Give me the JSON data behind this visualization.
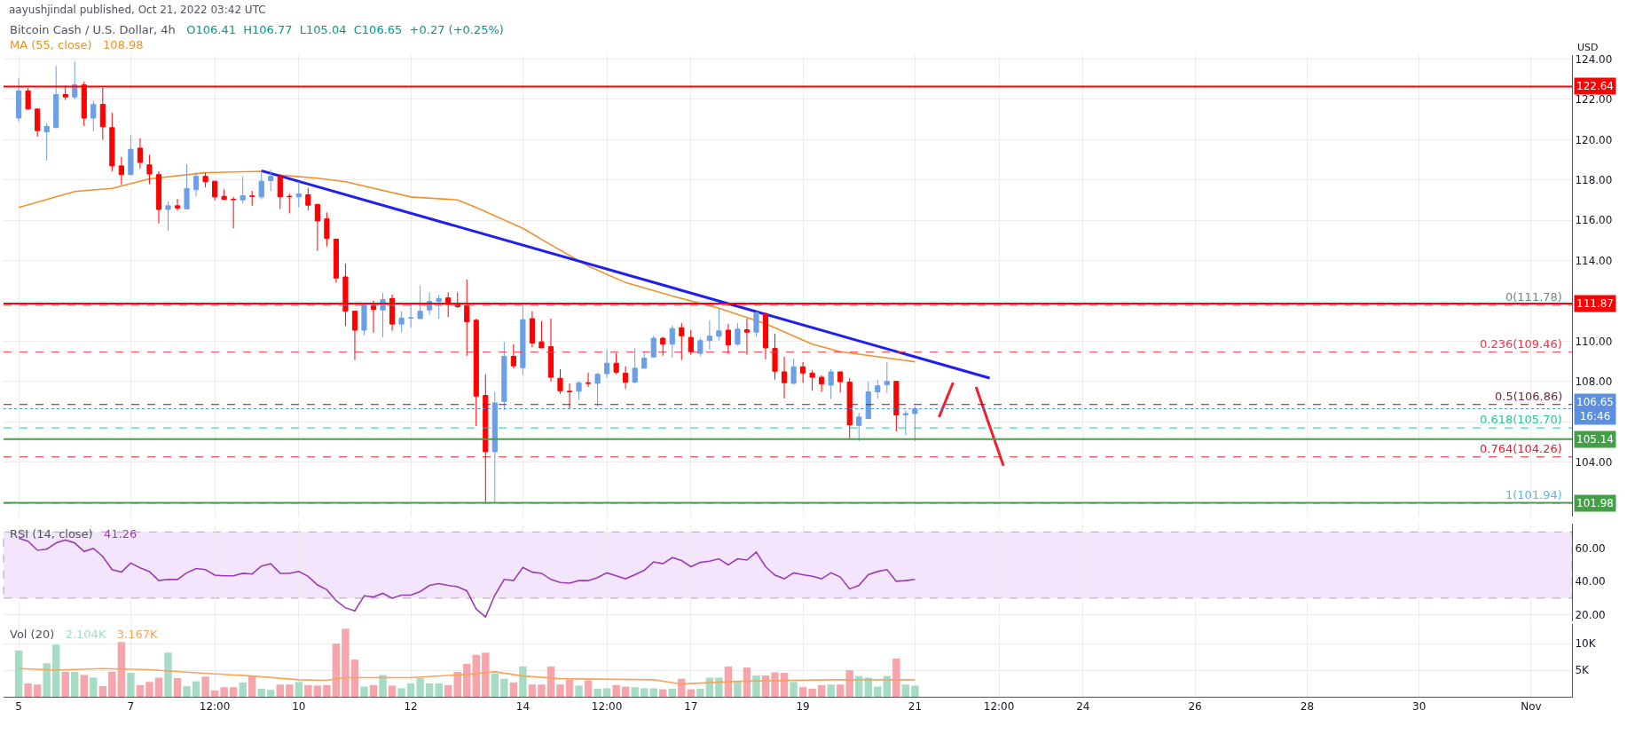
{
  "chart_data": [
    {
      "type": "candlestick",
      "title": "Bitcoin Cash / U.S. Dollar, 4h",
      "subtitle": "O106.41  H106.77  L105.04  C106.65  +0.27 (+0.25%)",
      "ylabel": "USD",
      "annotations": [
        "aayushjindal published, Oct 21, 2022 03:42 UTC",
        "108.98"
      ],
      "x": [
        "2022-10-05T00:00",
        "2022-10-05T04:00",
        "2022-10-05T08:00",
        "2022-10-05T12:00",
        "2022-10-05T16:00",
        "2022-10-05T20:00",
        "2022-10-06T00:00",
        "2022-10-06T04:00",
        "2022-10-06T08:00",
        "2022-10-06T12:00",
        "2022-10-06T16:00",
        "2022-10-06T20:00",
        "2022-10-07T00:00",
        "2022-10-07T04:00",
        "2022-10-07T08:00",
        "2022-10-07T12:00",
        "2022-10-07T16:00",
        "2022-10-07T20:00",
        "2022-10-08T00:00",
        "2022-10-08T04:00",
        "2022-10-08T08:00",
        "2022-10-08T12:00",
        "2022-10-08T16:00",
        "2022-10-08T20:00",
        "2022-10-09T00:00",
        "2022-10-09T04:00",
        "2022-10-09T08:00",
        "2022-10-09T12:00",
        "2022-10-09T16:00",
        "2022-10-09T20:00",
        "2022-10-10T00:00",
        "2022-10-10T04:00",
        "2022-10-10T08:00",
        "2022-10-10T12:00",
        "2022-10-10T16:00",
        "2022-10-10T20:00",
        "2022-10-11T00:00",
        "2022-10-11T04:00",
        "2022-10-11T08:00",
        "2022-10-11T12:00",
        "2022-10-11T16:00",
        "2022-10-11T20:00",
        "2022-10-12T00:00",
        "2022-10-12T04:00",
        "2022-10-12T08:00",
        "2022-10-12T12:00",
        "2022-10-12T16:00",
        "2022-10-12T20:00",
        "2022-10-13T00:00",
        "2022-10-13T04:00",
        "2022-10-13T08:00",
        "2022-10-13T12:00",
        "2022-10-13T16:00",
        "2022-10-13T20:00",
        "2022-10-14T00:00",
        "2022-10-14T04:00",
        "2022-10-14T08:00",
        "2022-10-14T12:00",
        "2022-10-14T16:00",
        "2022-10-14T20:00",
        "2022-10-15T00:00",
        "2022-10-15T04:00",
        "2022-10-15T08:00",
        "2022-10-15T12:00",
        "2022-10-15T16:00",
        "2022-10-15T20:00",
        "2022-10-16T00:00",
        "2022-10-16T04:00",
        "2022-10-16T08:00",
        "2022-10-16T12:00",
        "2022-10-16T16:00",
        "2022-10-16T20:00",
        "2022-10-17T00:00",
        "2022-10-17T04:00",
        "2022-10-17T08:00",
        "2022-10-17T12:00",
        "2022-10-17T16:00",
        "2022-10-17T20:00",
        "2022-10-18T00:00",
        "2022-10-18T04:00",
        "2022-10-18T08:00",
        "2022-10-18T12:00",
        "2022-10-18T16:00",
        "2022-10-18T20:00",
        "2022-10-19T00:00",
        "2022-10-19T04:00",
        "2022-10-19T08:00",
        "2022-10-19T12:00",
        "2022-10-19T16:00",
        "2022-10-19T20:00",
        "2022-10-20T00:00",
        "2022-10-20T04:00",
        "2022-10-20T08:00",
        "2022-10-20T12:00",
        "2022-10-20T16:00",
        "2022-10-20T20:00",
        "2022-10-21T00:00"
      ],
      "ohlc": [
        [
          121.07,
          123.04,
          120.9,
          122.42
        ],
        [
          122.42,
          122.57,
          121.5,
          121.52
        ],
        [
          121.52,
          121.55,
          120.15,
          120.45
        ],
        [
          120.39,
          120.82,
          118.96,
          120.66
        ],
        [
          120.6,
          123.66,
          120.6,
          122.24
        ],
        [
          122.24,
          122.69,
          121.97,
          122.12
        ],
        [
          122.12,
          123.88,
          121.99,
          122.72
        ],
        [
          122.72,
          122.87,
          120.67,
          121.07
        ],
        [
          121.07,
          121.94,
          120.42,
          121.75
        ],
        [
          121.75,
          122.57,
          120.0,
          120.64
        ],
        [
          120.6,
          121.34,
          118.43,
          118.7
        ],
        [
          118.7,
          119.15,
          117.76,
          118.27
        ],
        [
          118.27,
          120.22,
          118.21,
          119.52
        ],
        [
          119.58,
          120.07,
          118.57,
          118.87
        ],
        [
          118.75,
          119.25,
          117.79,
          118.3
        ],
        [
          118.27,
          118.43,
          115.85,
          116.54
        ],
        [
          116.54,
          116.94,
          115.48,
          116.72
        ],
        [
          116.72,
          117.06,
          116.49,
          116.61
        ],
        [
          116.57,
          118.78,
          116.54,
          117.58
        ],
        [
          117.52,
          118.39,
          117.19,
          118.18
        ],
        [
          118.18,
          118.36,
          117.64,
          117.91
        ],
        [
          117.94,
          117.94,
          116.99,
          117.16
        ],
        [
          117.19,
          117.54,
          117.01,
          117.04
        ],
        [
          117.04,
          117.16,
          115.6,
          117.03
        ],
        [
          117.01,
          118.18,
          116.84,
          117.22
        ],
        [
          117.2,
          117.46,
          116.72,
          117.19
        ],
        [
          117.16,
          118.43,
          117.04,
          117.94
        ],
        [
          117.97,
          118.51,
          117.46,
          118.18
        ],
        [
          118.18,
          118.28,
          116.57,
          117.16
        ],
        [
          117.19,
          117.31,
          116.34,
          117.17
        ],
        [
          117.16,
          117.91,
          116.64,
          117.31
        ],
        [
          117.27,
          117.61,
          116.49,
          116.75
        ],
        [
          116.79,
          116.79,
          114.48,
          115.97
        ],
        [
          116.07,
          116.39,
          114.7,
          115.1
        ],
        [
          115.06,
          115.1,
          112.91,
          113.13
        ],
        [
          113.19,
          113.85,
          110.75,
          111.49
        ],
        [
          111.49,
          111.49,
          109.07,
          110.55
        ],
        [
          110.55,
          111.79,
          110.3,
          111.79
        ],
        [
          111.76,
          112.01,
          110.42,
          111.58
        ],
        [
          111.55,
          112.39,
          110.21,
          112.06
        ],
        [
          112.12,
          112.31,
          110.52,
          110.85
        ],
        [
          110.85,
          111.49,
          110.45,
          111.15
        ],
        [
          111.15,
          111.82,
          110.67,
          111.16
        ],
        [
          111.12,
          112.76,
          111.12,
          111.49
        ],
        [
          111.55,
          112.42,
          111.31,
          111.97
        ],
        [
          111.97,
          112.31,
          111.12,
          112.12
        ],
        [
          112.15,
          112.42,
          111.19,
          111.82
        ],
        [
          111.82,
          112.42,
          111.64,
          111.72
        ],
        [
          111.76,
          113.06,
          109.28,
          110.97
        ],
        [
          111.04,
          111.12,
          105.79,
          107.28
        ],
        [
          107.31,
          108.36,
          101.94,
          104.52
        ],
        [
          104.52,
          107.49,
          102.0,
          106.94
        ],
        [
          107.01,
          109.97,
          106.57,
          109.25
        ],
        [
          109.25,
          109.85,
          108.66,
          108.78
        ],
        [
          108.69,
          111.76,
          108.33,
          111.07
        ],
        [
          111.12,
          111.49,
          109.7,
          109.91
        ],
        [
          109.97,
          111.0,
          109.67,
          109.67
        ],
        [
          109.73,
          111.12,
          107.99,
          108.21
        ],
        [
          108.16,
          108.61,
          107.39,
          107.54
        ],
        [
          107.52,
          107.91,
          106.64,
          107.49
        ],
        [
          107.52,
          108.01,
          107.09,
          107.94
        ],
        [
          107.94,
          108.43,
          107.73,
          107.91
        ],
        [
          107.91,
          108.43,
          106.75,
          108.36
        ],
        [
          108.39,
          109.58,
          108.18,
          108.91
        ],
        [
          108.91,
          109.4,
          108.36,
          108.46
        ],
        [
          108.42,
          108.76,
          107.64,
          107.97
        ],
        [
          107.97,
          109.66,
          107.91,
          108.66
        ],
        [
          108.66,
          109.51,
          108.66,
          109.16
        ],
        [
          109.22,
          110.27,
          109.18,
          110.15
        ],
        [
          110.15,
          110.22,
          109.28,
          109.85
        ],
        [
          109.85,
          110.78,
          109.18,
          110.63
        ],
        [
          110.67,
          110.9,
          109.07,
          110.27
        ],
        [
          110.19,
          110.57,
          109.33,
          109.48
        ],
        [
          109.4,
          110.18,
          109.25,
          110.03
        ],
        [
          110.03,
          111.04,
          109.58,
          110.25
        ],
        [
          110.25,
          111.61,
          110.03,
          110.51
        ],
        [
          110.55,
          110.87,
          109.37,
          109.82
        ],
        [
          109.85,
          110.9,
          109.78,
          110.6
        ],
        [
          110.57,
          111.12,
          109.33,
          110.45
        ],
        [
          110.45,
          111.46,
          110.22,
          111.42
        ],
        [
          111.37,
          111.42,
          109.1,
          109.67
        ],
        [
          109.64,
          110.37,
          108.09,
          108.51
        ],
        [
          108.48,
          109.22,
          107.16,
          107.94
        ],
        [
          107.91,
          109.13,
          107.87,
          108.73
        ],
        [
          108.73,
          108.96,
          107.94,
          108.42
        ],
        [
          108.42,
          108.57,
          107.54,
          108.21
        ],
        [
          108.21,
          108.3,
          107.49,
          107.88
        ],
        [
          107.82,
          108.61,
          107.13,
          108.48
        ],
        [
          108.48,
          108.48,
          107.46,
          107.99
        ],
        [
          107.97,
          108.18,
          105.19,
          105.85
        ],
        [
          105.82,
          106.45,
          105.04,
          106.24
        ],
        [
          106.16,
          107.99,
          106.15,
          107.49
        ],
        [
          107.49,
          108.09,
          107.16,
          107.79
        ],
        [
          107.84,
          108.96,
          107.43,
          108.01
        ],
        [
          108.01,
          108.01,
          105.52,
          106.34
        ],
        [
          106.34,
          106.57,
          105.34,
          106.41
        ],
        [
          106.41,
          106.77,
          105.04,
          106.65
        ]
      ],
      "colors": [
        "#6b9fe8",
        "#ff0000",
        "#ff0000",
        "#6b9fe8",
        "#6b9fe8",
        "#ff0000",
        "#6b9fe8",
        "#ff0000",
        "#6b9fe8",
        "#ff0000",
        "#ff0000",
        "#ff0000",
        "#6b9fe8",
        "#ff0000",
        "#ff0000",
        "#ff0000",
        "#6b9fe8",
        "#ff0000",
        "#6b9fe8",
        "#6b9fe8",
        "#ff0000",
        "#ff0000",
        "#ff0000",
        "#ff0000",
        "#6b9fe8",
        "#ff0000",
        "#6b9fe8",
        "#6b9fe8",
        "#ff0000",
        "#ff0000",
        "#6b9fe8",
        "#ff0000",
        "#ff0000",
        "#ff0000",
        "#ff0000",
        "#ff0000",
        "#ff0000",
        "#6b9fe8",
        "#ff0000",
        "#6b9fe8",
        "#ff0000",
        "#6b9fe8",
        "#6b9fe8",
        "#6b9fe8",
        "#6b9fe8",
        "#6b9fe8",
        "#ff0000",
        "#ff0000",
        "#ff0000",
        "#ff0000",
        "#ff0000",
        "#6b9fe8",
        "#6b9fe8",
        "#ff0000",
        "#6b9fe8",
        "#ff0000",
        "#ff0000",
        "#ff0000",
        "#ff0000",
        "#ff0000",
        "#6b9fe8",
        "#ff0000",
        "#6b9fe8",
        "#6b9fe8",
        "#ff0000",
        "#ff0000",
        "#6b9fe8",
        "#6b9fe8",
        "#6b9fe8",
        "#ff0000",
        "#6b9fe8",
        "#ff0000",
        "#ff0000",
        "#6b9fe8",
        "#6b9fe8",
        "#6b9fe8",
        "#ff0000",
        "#6b9fe8",
        "#ff0000",
        "#6b9fe8",
        "#ff0000",
        "#ff0000",
        "#ff0000",
        "#6b9fe8",
        "#ff0000",
        "#ff0000",
        "#ff0000",
        "#6b9fe8",
        "#ff0000",
        "#ff0000",
        "#6b9fe8",
        "#6b9fe8",
        "#6b9fe8",
        "#6b9fe8",
        "#ff0000",
        "#6b9fe8",
        "#6b9fe8"
      ],
      "series": [
        {
          "type": "line",
          "name": "MA (55, close)",
          "color": "#f0902c",
          "x": [
            "2022-10-05T00:00",
            "2022-10-06T00:00",
            "2022-10-06T16:00",
            "2022-10-07T08:00",
            "2022-10-08T08:00",
            "2022-10-09T08:00",
            "2022-10-09T16:00",
            "2022-10-10T08:00",
            "2022-10-10T20:00",
            "2022-10-12T00:00",
            "2022-10-12T20:00",
            "2022-10-13T04:00",
            "2022-10-14T00:00",
            "2022-10-14T12:00",
            "2022-10-15T04:00",
            "2022-10-15T20:00",
            "2022-10-16T16:00",
            "2022-10-17T12:00",
            "2022-10-18T08:00",
            "2022-10-19T04:00",
            "2022-10-19T16:00",
            "2022-10-21T00:00"
          ],
          "values": [
            116.64,
            117.43,
            117.58,
            118.06,
            118.36,
            118.43,
            118.24,
            118.09,
            117.91,
            117.16,
            117.01,
            116.64,
            115.6,
            114.78,
            113.73,
            112.91,
            112.24,
            111.64,
            110.87,
            109.85,
            109.48,
            108.98
          ]
        },
        {
          "type": "line",
          "color": "#1f1ff0",
          "x": [
            "2022-10-09T08:00",
            "2022-10-22T08:00"
          ],
          "values": [
            118.46,
            108.17
          ]
        },
        {
          "type": "line",
          "color": "#f0202a",
          "x": [
            "2022-10-21T10:20",
            "2022-10-21T16:20"
          ],
          "values": [
            106.24,
            107.95
          ]
        },
        {
          "type": "line",
          "color": "#f0202a",
          "x": [
            "2022-10-22T02:10",
            "2022-10-22T13:55"
          ],
          "values": [
            107.73,
            103.82
          ]
        }
      ],
      "ref_lines": [
        {
          "axis": "y",
          "value": 122.64,
          "label": "122.64",
          "color": "#ff0000",
          "line_style": "solid"
        },
        {
          "axis": "y",
          "value": 111.87,
          "label": "111.87",
          "color": "#ff0000",
          "line_style": "solid"
        },
        {
          "axis": "y",
          "value": 105.14,
          "label": "105.14",
          "color": "#43a047",
          "line_style": "solid"
        },
        {
          "axis": "y",
          "value": 101.98,
          "label": "101.98",
          "color": "#43a047",
          "line_style": "solid"
        },
        {
          "axis": "y",
          "value": 106.65,
          "label": "106.65\n16:46",
          "color": "#5b8fe0",
          "line_style": "dotted"
        },
        {
          "axis": "y",
          "value": 111.78,
          "label": "0(111.78)",
          "color": "#808080",
          "line_style": "dashed"
        },
        {
          "axis": "y",
          "value": 109.46,
          "label": "0.236(109.46)",
          "color": "#f23645",
          "line_style": "dashed"
        },
        {
          "axis": "y",
          "value": 106.86,
          "label": "0.5(106.86)",
          "color": "#6e1f3a",
          "line_style": "dashed"
        },
        {
          "axis": "y",
          "value": 105.7,
          "label": "0.618(105.70)",
          "color": "#22c997",
          "line_style": "dashed"
        },
        {
          "axis": "y",
          "value": 104.26,
          "label": "0.764(104.26)",
          "color": "#e0202e",
          "line_style": "dashed"
        },
        {
          "axis": "y",
          "value": 101.94,
          "label": "1(101.94)",
          "color": "#5bb5e8",
          "line_style": "dashed"
        }
      ],
      "xlim": [
        "2022-10-04T17:30",
        "2022-11-01T17:30"
      ],
      "xticks": [
        {
          "value": "2022-10-05",
          "label": null
        },
        {
          "value": "2022-10-07",
          "label": null
        },
        {
          "value": "2022-10-08T12:00",
          "label": null
        },
        {
          "value": "2022-10-10",
          "label": null
        },
        {
          "value": "2022-10-12",
          "label": null
        },
        {
          "value": "2022-10-14",
          "label": null
        },
        {
          "value": "2022-10-15T12:00",
          "label": null
        },
        {
          "value": "2022-10-17",
          "label": null
        },
        {
          "value": "2022-10-19",
          "label": null
        },
        {
          "value": "2022-10-21",
          "label": null
        },
        {
          "value": "2022-10-22T12:00",
          "label": null
        },
        {
          "value": "2022-10-24",
          "label": null
        },
        {
          "value": "2022-10-26",
          "label": null
        },
        {
          "value": "2022-10-28",
          "label": null
        },
        {
          "value": "2022-10-30",
          "label": null
        },
        {
          "value": "2022-11-01",
          "label": null
        }
      ],
      "ylim": [
        101.3,
        124.2
      ],
      "yticks": [
        {
          "value": 104,
          "label": "104.00"
        },
        {
          "value": 106,
          "label": null
        },
        {
          "value": 108,
          "label": "108.00"
        },
        {
          "value": 110,
          "label": "110.00"
        },
        {
          "value": 112,
          "label": null
        },
        {
          "value": 114,
          "label": "114.00"
        },
        {
          "value": 116,
          "label": "116.00"
        },
        {
          "value": 118,
          "label": "118.00"
        },
        {
          "value": 120,
          "label": "120.00"
        },
        {
          "value": 122,
          "label": "122.00"
        },
        {
          "value": 124,
          "label": "124.00"
        }
      ],
      "grid": true,
      "tick_labels": "y"
    },
    {
      "type": "line",
      "title": "RSI (14, close)",
      "annotations": [
        "41.26"
      ],
      "color": "#9c3bb5",
      "x": [
        "2022-10-05T00:00",
        "2022-10-05T04:00",
        "2022-10-05T08:00",
        "2022-10-05T12:00",
        "2022-10-05T16:00",
        "2022-10-05T20:00",
        "2022-10-06T00:00",
        "2022-10-06T04:00",
        "2022-10-06T08:00",
        "2022-10-06T12:00",
        "2022-10-06T16:00",
        "2022-10-06T20:00",
        "2022-10-07T00:00",
        "2022-10-07T04:00",
        "2022-10-07T08:00",
        "2022-10-07T12:00",
        "2022-10-07T16:00",
        "2022-10-07T20:00",
        "2022-10-08T00:00",
        "2022-10-08T04:00",
        "2022-10-08T08:00",
        "2022-10-08T12:00",
        "2022-10-08T16:00",
        "2022-10-08T20:00",
        "2022-10-09T00:00",
        "2022-10-09T04:00",
        "2022-10-09T08:00",
        "2022-10-09T12:00",
        "2022-10-09T16:00",
        "2022-10-09T20:00",
        "2022-10-10T00:00",
        "2022-10-10T04:00",
        "2022-10-10T08:00",
        "2022-10-10T12:00",
        "2022-10-10T16:00",
        "2022-10-10T20:00",
        "2022-10-11T00:00",
        "2022-10-11T04:00",
        "2022-10-11T08:00",
        "2022-10-11T12:00",
        "2022-10-11T16:00",
        "2022-10-11T20:00",
        "2022-10-12T00:00",
        "2022-10-12T04:00",
        "2022-10-12T08:00",
        "2022-10-12T12:00",
        "2022-10-12T16:00",
        "2022-10-12T20:00",
        "2022-10-13T00:00",
        "2022-10-13T04:00",
        "2022-10-13T08:00",
        "2022-10-13T12:00",
        "2022-10-13T16:00",
        "2022-10-13T20:00",
        "2022-10-14T00:00",
        "2022-10-14T04:00",
        "2022-10-14T08:00",
        "2022-10-14T12:00",
        "2022-10-14T16:00",
        "2022-10-14T20:00",
        "2022-10-15T00:00",
        "2022-10-15T04:00",
        "2022-10-15T08:00",
        "2022-10-15T12:00",
        "2022-10-15T16:00",
        "2022-10-15T20:00",
        "2022-10-16T00:00",
        "2022-10-16T04:00",
        "2022-10-16T08:00",
        "2022-10-16T12:00",
        "2022-10-16T16:00",
        "2022-10-16T20:00",
        "2022-10-17T00:00",
        "2022-10-17T04:00",
        "2022-10-17T08:00",
        "2022-10-17T12:00",
        "2022-10-17T16:00",
        "2022-10-17T20:00",
        "2022-10-18T00:00",
        "2022-10-18T04:00",
        "2022-10-18T08:00",
        "2022-10-18T12:00",
        "2022-10-18T16:00",
        "2022-10-18T20:00",
        "2022-10-19T00:00",
        "2022-10-19T04:00",
        "2022-10-19T08:00",
        "2022-10-19T12:00",
        "2022-10-19T16:00",
        "2022-10-19T20:00",
        "2022-10-20T00:00",
        "2022-10-20T04:00",
        "2022-10-20T08:00",
        "2022-10-20T12:00",
        "2022-10-20T16:00",
        "2022-10-20T20:00",
        "2022-10-21T00:00"
      ],
      "values": [
        66.2,
        64.4,
        58.9,
        59.6,
        63.3,
        65.1,
        63.3,
        58.2,
        60.0,
        55.2,
        47.2,
        45.7,
        51.2,
        48.3,
        46.1,
        40.6,
        41.3,
        41.3,
        45.3,
        47.9,
        47.2,
        43.9,
        43.5,
        43.5,
        45.0,
        44.6,
        49.4,
        50.8,
        45.0,
        45.0,
        46.1,
        43.2,
        38.0,
        35.1,
        28.5,
        24.1,
        22.3,
        31.4,
        30.7,
        32.9,
        30.0,
        31.8,
        31.8,
        34.0,
        37.7,
        38.8,
        37.7,
        36.9,
        34.4,
        23.4,
        18.6,
        31.8,
        41.3,
        40.6,
        48.6,
        45.7,
        45.0,
        41.3,
        39.5,
        39.1,
        40.6,
        40.6,
        42.4,
        45.3,
        43.5,
        41.7,
        44.2,
        46.8,
        51.9,
        50.8,
        54.5,
        52.7,
        49.0,
        51.6,
        52.3,
        53.8,
        50.1,
        53.8,
        53.0,
        57.8,
        49.0,
        43.9,
        41.7,
        45.3,
        44.2,
        43.2,
        41.7,
        45.3,
        42.8,
        35.5,
        37.7,
        44.2,
        46.1,
        47.2,
        40.2,
        40.6,
        41.3
      ],
      "bands": [
        {
          "axis": "y",
          "from": 30,
          "to": 70,
          "color": "#f3e6fc"
        }
      ],
      "xlim": [
        "2022-10-04T17:30",
        "2022-11-01T17:30"
      ],
      "xticks": [
        {
          "value": "2022-10-05",
          "label": null
        },
        {
          "value": "2022-10-07",
          "label": null
        },
        {
          "value": "2022-10-08T12:00",
          "label": null
        },
        {
          "value": "2022-10-10",
          "label": null
        },
        {
          "value": "2022-10-12",
          "label": null
        },
        {
          "value": "2022-10-14",
          "label": null
        },
        {
          "value": "2022-10-15T12:00",
          "label": null
        },
        {
          "value": "2022-10-17",
          "label": null
        },
        {
          "value": "2022-10-19",
          "label": null
        },
        {
          "value": "2022-10-21",
          "label": null
        },
        {
          "value": "2022-10-22T12:00",
          "label": null
        },
        {
          "value": "2022-10-24",
          "label": null
        },
        {
          "value": "2022-10-26",
          "label": null
        },
        {
          "value": "2022-10-28",
          "label": null
        },
        {
          "value": "2022-10-30",
          "label": null
        },
        {
          "value": "2022-11-01",
          "label": null
        }
      ],
      "ylim": [
        16,
        75
      ],
      "yticks": [
        {
          "value": 20,
          "label": "20.00"
        },
        {
          "value": 40,
          "label": "40.00"
        },
        {
          "value": 60,
          "label": "60.00"
        }
      ],
      "grid": true,
      "tick_labels": "y"
    },
    {
      "type": "bar",
      "title": "Vol (20)",
      "annotations": [
        "2.104K",
        "3.167K"
      ],
      "x": [
        "2022-10-05T00:00",
        "2022-10-05T04:00",
        "2022-10-05T08:00",
        "2022-10-05T12:00",
        "2022-10-05T16:00",
        "2022-10-05T20:00",
        "2022-10-06T00:00",
        "2022-10-06T04:00",
        "2022-10-06T08:00",
        "2022-10-06T12:00",
        "2022-10-06T16:00",
        "2022-10-06T20:00",
        "2022-10-07T00:00",
        "2022-10-07T04:00",
        "2022-10-07T08:00",
        "2022-10-07T12:00",
        "2022-10-07T16:00",
        "2022-10-07T20:00",
        "2022-10-08T00:00",
        "2022-10-08T04:00",
        "2022-10-08T08:00",
        "2022-10-08T12:00",
        "2022-10-08T16:00",
        "2022-10-08T20:00",
        "2022-10-09T00:00",
        "2022-10-09T04:00",
        "2022-10-09T08:00",
        "2022-10-09T12:00",
        "2022-10-09T16:00",
        "2022-10-09T20:00",
        "2022-10-10T00:00",
        "2022-10-10T04:00",
        "2022-10-10T08:00",
        "2022-10-10T12:00",
        "2022-10-10T16:00",
        "2022-10-10T20:00",
        "2022-10-11T00:00",
        "2022-10-11T04:00",
        "2022-10-11T08:00",
        "2022-10-11T12:00",
        "2022-10-11T16:00",
        "2022-10-11T20:00",
        "2022-10-12T00:00",
        "2022-10-12T04:00",
        "2022-10-12T08:00",
        "2022-10-12T12:00",
        "2022-10-12T16:00",
        "2022-10-12T20:00",
        "2022-10-13T00:00",
        "2022-10-13T04:00",
        "2022-10-13T08:00",
        "2022-10-13T12:00",
        "2022-10-13T16:00",
        "2022-10-13T20:00",
        "2022-10-14T00:00",
        "2022-10-14T04:00",
        "2022-10-14T08:00",
        "2022-10-14T12:00",
        "2022-10-14T16:00",
        "2022-10-14T20:00",
        "2022-10-15T00:00",
        "2022-10-15T04:00",
        "2022-10-15T08:00",
        "2022-10-15T12:00",
        "2022-10-15T16:00",
        "2022-10-15T20:00",
        "2022-10-16T00:00",
        "2022-10-16T04:00",
        "2022-10-16T08:00",
        "2022-10-16T12:00",
        "2022-10-16T16:00",
        "2022-10-16T20:00",
        "2022-10-17T00:00",
        "2022-10-17T04:00",
        "2022-10-17T08:00",
        "2022-10-17T12:00",
        "2022-10-17T16:00",
        "2022-10-17T20:00",
        "2022-10-18T00:00",
        "2022-10-18T04:00",
        "2022-10-18T08:00",
        "2022-10-18T12:00",
        "2022-10-18T16:00",
        "2022-10-18T20:00",
        "2022-10-19T00:00",
        "2022-10-19T04:00",
        "2022-10-19T08:00",
        "2022-10-19T12:00",
        "2022-10-19T16:00",
        "2022-10-19T20:00",
        "2022-10-20T00:00",
        "2022-10-20T04:00",
        "2022-10-20T08:00",
        "2022-10-20T12:00",
        "2022-10-20T16:00",
        "2022-10-20T20:00",
        "2022-10-21T00:00"
      ],
      "values": [
        8.7,
        2.5,
        2.3,
        6.3,
        9.8,
        4.7,
        4.7,
        4.1,
        3.6,
        2.0,
        4.7,
        10.3,
        4.5,
        2.2,
        2.8,
        3.6,
        8.3,
        3.5,
        2.0,
        2.9,
        3.8,
        1.2,
        1.8,
        1.8,
        2.7,
        4.0,
        1.5,
        1.3,
        2.3,
        2.3,
        2.8,
        2.2,
        2.1,
        2.2,
        10.0,
        12.8,
        7.0,
        1.9,
        2.2,
        4.1,
        2.1,
        1.6,
        2.5,
        3.5,
        2.5,
        2.5,
        2.2,
        4.7,
        6.2,
        7.9,
        8.3,
        4.4,
        3.4,
        2.7,
        5.7,
        2.3,
        2.3,
        5.7,
        2.3,
        3.2,
        2.1,
        3.1,
        1.5,
        1.6,
        2.2,
        1.9,
        1.8,
        1.6,
        1.6,
        1.4,
        1.5,
        3.4,
        1.4,
        1.5,
        3.6,
        3.6,
        5.7,
        2.8,
        5.5,
        4.0,
        4.0,
        4.6,
        4.5,
        2.8,
        1.8,
        1.5,
        2.2,
        2.3,
        2.3,
        5.0,
        3.9,
        3.6,
        1.9,
        3.9,
        7.2,
        2.3,
        2.1
      ],
      "colors": [
        "#a5dcc3",
        "#f6a5ab",
        "#f6a5ab",
        "#a5dcc3",
        "#a5dcc3",
        "#f6a5ab",
        "#a5dcc3",
        "#f6a5ab",
        "#a5dcc3",
        "#f6a5ab",
        "#f6a5ab",
        "#f6a5ab",
        "#a5dcc3",
        "#f6a5ab",
        "#f6a5ab",
        "#f6a5ab",
        "#a5dcc3",
        "#f6a5ab",
        "#a5dcc3",
        "#a5dcc3",
        "#f6a5ab",
        "#f6a5ab",
        "#f6a5ab",
        "#f6a5ab",
        "#a5dcc3",
        "#f6a5ab",
        "#a5dcc3",
        "#a5dcc3",
        "#f6a5ab",
        "#f6a5ab",
        "#a5dcc3",
        "#f6a5ab",
        "#f6a5ab",
        "#f6a5ab",
        "#f6a5ab",
        "#f6a5ab",
        "#f6a5ab",
        "#a5dcc3",
        "#f6a5ab",
        "#a5dcc3",
        "#f6a5ab",
        "#a5dcc3",
        "#a5dcc3",
        "#a5dcc3",
        "#a5dcc3",
        "#a5dcc3",
        "#f6a5ab",
        "#f6a5ab",
        "#f6a5ab",
        "#f6a5ab",
        "#f6a5ab",
        "#a5dcc3",
        "#a5dcc3",
        "#f6a5ab",
        "#a5dcc3",
        "#f6a5ab",
        "#f6a5ab",
        "#f6a5ab",
        "#f6a5ab",
        "#f6a5ab",
        "#a5dcc3",
        "#f6a5ab",
        "#a5dcc3",
        "#a5dcc3",
        "#f6a5ab",
        "#f6a5ab",
        "#a5dcc3",
        "#a5dcc3",
        "#a5dcc3",
        "#f6a5ab",
        "#a5dcc3",
        "#f6a5ab",
        "#f6a5ab",
        "#a5dcc3",
        "#a5dcc3",
        "#a5dcc3",
        "#f6a5ab",
        "#a5dcc3",
        "#f6a5ab",
        "#a5dcc3",
        "#f6a5ab",
        "#f6a5ab",
        "#f6a5ab",
        "#a5dcc3",
        "#f6a5ab",
        "#f6a5ab",
        "#f6a5ab",
        "#a5dcc3",
        "#f6a5ab",
        "#f6a5ab",
        "#a5dcc3",
        "#a5dcc3",
        "#a5dcc3",
        "#a5dcc3",
        "#f6a5ab",
        "#a5dcc3",
        "#a5dcc3"
      ],
      "series": [
        {
          "type": "line",
          "color": "#f7a35c",
          "x": [
            "2022-10-05T00:00",
            "2022-10-05T16:00",
            "2022-10-06T12:00",
            "2022-10-07T08:00",
            "2022-10-08T04:00",
            "2022-10-09T04:00",
            "2022-10-10T00:00",
            "2022-10-10T12:00",
            "2022-10-10T20:00",
            "2022-10-12T00:00",
            "2022-10-13T00:00",
            "2022-10-13T12:00",
            "2022-10-14T00:00",
            "2022-10-14T16:00",
            "2022-10-16T08:00",
            "2022-10-16T20:00",
            "2022-10-17T20:00",
            "2022-10-19T12:00",
            "2022-10-21T00:00"
          ],
          "values": [
            5.3,
            5.0,
            5.3,
            5.1,
            4.5,
            3.9,
            3.2,
            3.1,
            3.6,
            3.6,
            4.2,
            4.7,
            3.9,
            3.4,
            3.2,
            2.4,
            2.9,
            3.2,
            3.2
          ]
        }
      ],
      "xlim": [
        "2022-10-04T17:30",
        "2022-11-01T17:30"
      ],
      "xticks": [
        {
          "value": "2022-10-05",
          "label": "5"
        },
        {
          "value": "2022-10-07",
          "label": "7"
        },
        {
          "value": "2022-10-08T12:00",
          "label": "12:00"
        },
        {
          "value": "2022-10-10",
          "label": "10"
        },
        {
          "value": "2022-10-12",
          "label": "12"
        },
        {
          "value": "2022-10-14",
          "label": "14"
        },
        {
          "value": "2022-10-15T12:00",
          "label": "12:00"
        },
        {
          "value": "2022-10-17",
          "label": "17"
        },
        {
          "value": "2022-10-19",
          "label": "19"
        },
        {
          "value": "2022-10-21",
          "label": "21"
        },
        {
          "value": "2022-10-22T12:00",
          "label": "12:00"
        },
        {
          "value": "2022-10-24",
          "label": "24"
        },
        {
          "value": "2022-10-26",
          "label": "26"
        },
        {
          "value": "2022-10-28",
          "label": "28"
        },
        {
          "value": "2022-10-30",
          "label": "30"
        },
        {
          "value": "2022-11-01",
          "label": "Nov"
        }
      ],
      "ylim": [
        0,
        13.7
      ],
      "yticks": [
        {
          "value": 5,
          "label": "5K"
        },
        {
          "value": 10,
          "label": "10K"
        }
      ],
      "grid": true
    }
  ]
}
